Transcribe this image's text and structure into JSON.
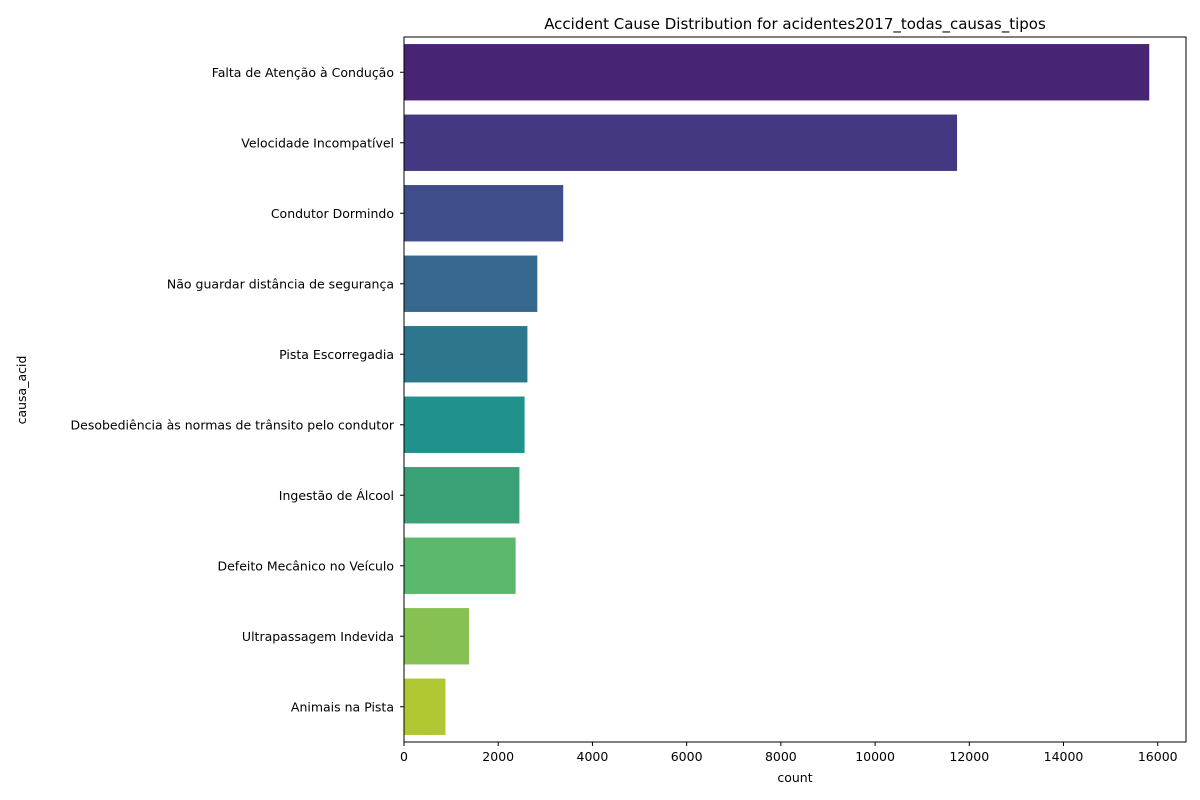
{
  "chart_data": {
    "type": "bar",
    "orientation": "horizontal",
    "title": "Accident Cause Distribution for acidentes2017_todas_causas_tipos",
    "xlabel": "count",
    "ylabel": "causa_acid",
    "xlim": [
      0,
      16600
    ],
    "x_ticks": [
      0,
      2000,
      4000,
      6000,
      8000,
      10000,
      12000,
      14000,
      16000
    ],
    "grid": false,
    "legend": "none",
    "categories": [
      "Falta de Atenção à Condução",
      "Velocidade Incompatível",
      "Condutor Dormindo",
      "Não guardar distância de segurança",
      "Pista Escorregadia",
      "Desobediência às normas de trânsito pelo condutor",
      "Ingestão de Álcool",
      "Defeito Mecânico no Veículo",
      "Ultrapassagem Indevida",
      "Animais na Pista"
    ],
    "values": [
      15820,
      11740,
      3380,
      2830,
      2620,
      2560,
      2450,
      2370,
      1380,
      880
    ],
    "colors": [
      "#482475",
      "#453882",
      "#3f4d8a",
      "#37688d",
      "#2d778e",
      "#21918c",
      "#3aa177",
      "#5bb86c",
      "#86c152",
      "#b1c731"
    ]
  }
}
